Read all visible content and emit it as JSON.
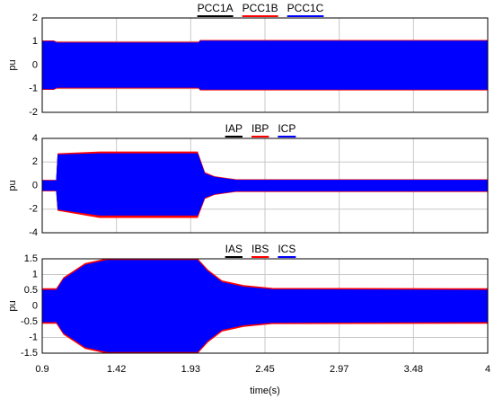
{
  "chart_data": [
    {
      "type": "band",
      "ylabel": "pu",
      "xlim": [
        0.9,
        4
      ],
      "ylim": [
        -2,
        2
      ],
      "yticks": [
        -2,
        -1,
        0,
        1,
        2
      ],
      "grid": true,
      "x": [
        0.9,
        0.98,
        1.0,
        1.99,
        2.0,
        4.0
      ],
      "series": [
        {
          "name": "PCC1A",
          "color": "#000000",
          "values": [
            1.0,
            1.0,
            0.95,
            0.95,
            1.02,
            1.02
          ],
          "lower": [
            -1.0,
            -1.0,
            -0.95,
            -0.95,
            -1.02,
            -1.02
          ]
        },
        {
          "name": "PCC1B",
          "color": "#ff0000",
          "values": [
            1.03,
            1.03,
            0.97,
            0.97,
            1.05,
            1.05
          ],
          "lower": [
            -1.03,
            -1.03,
            -0.97,
            -0.97,
            -1.05,
            -1.05
          ]
        },
        {
          "name": "PCC1C",
          "color": "#0000ff",
          "values": [
            1.0,
            1.0,
            0.94,
            0.94,
            1.02,
            1.02
          ],
          "lower": [
            -1.0,
            -1.0,
            -0.94,
            -0.94,
            -1.02,
            -1.02
          ]
        }
      ]
    },
    {
      "type": "band",
      "ylabel": "pu",
      "xlim": [
        0.9,
        4
      ],
      "ylim": [
        -4,
        4
      ],
      "yticks": [
        -4,
        -2,
        0,
        2,
        4
      ],
      "grid": true,
      "x": [
        0.9,
        1.0,
        1.01,
        1.3,
        1.98,
        2.03,
        2.1,
        2.25,
        4.0
      ],
      "series": [
        {
          "name": "IAP",
          "color": "#000000",
          "values": [
            0.4,
            0.4,
            2.6,
            2.7,
            2.7,
            1.0,
            0.7,
            0.45,
            0.45
          ],
          "lower": [
            -0.4,
            -0.4,
            -2.0,
            -2.5,
            -2.5,
            -1.0,
            -0.7,
            -0.45,
            -0.45
          ]
        },
        {
          "name": "IBP",
          "color": "#ff0000",
          "values": [
            0.45,
            0.45,
            2.7,
            2.85,
            2.85,
            1.1,
            0.75,
            0.5,
            0.5
          ],
          "lower": [
            -0.45,
            -0.45,
            -2.1,
            -2.7,
            -2.7,
            -1.1,
            -0.75,
            -0.5,
            -0.5
          ]
        },
        {
          "name": "ICP",
          "color": "#0000ff",
          "values": [
            0.4,
            0.4,
            2.6,
            2.7,
            2.7,
            1.0,
            0.7,
            0.45,
            0.45
          ],
          "lower": [
            -0.4,
            -0.4,
            -2.0,
            -2.5,
            -2.5,
            -1.0,
            -0.7,
            -0.45,
            -0.45
          ]
        }
      ]
    },
    {
      "type": "band",
      "ylabel": "pu",
      "xlabel": "time(s)",
      "xlim": [
        0.9,
        4
      ],
      "ylim": [
        -1.5,
        1.5
      ],
      "yticks": [
        -1.5,
        -1,
        -0.5,
        0,
        0.5,
        1,
        1.5
      ],
      "grid": true,
      "xticks": [
        0.9,
        {
          "value": 1.4167,
          "label": "1.42"
        },
        {
          "value": 1.9333,
          "label": "1.93"
        },
        2.45,
        {
          "value": 2.9667,
          "label": "2.97"
        },
        {
          "value": 3.4833,
          "label": "3.48"
        },
        4
      ],
      "x": [
        0.9,
        1.0,
        1.05,
        1.2,
        1.35,
        1.98,
        2.05,
        2.15,
        2.3,
        2.5,
        4.0
      ],
      "series": [
        {
          "name": "IAS",
          "color": "#000000",
          "values": [
            0.5,
            0.5,
            0.85,
            1.3,
            1.45,
            1.45,
            1.1,
            0.75,
            0.6,
            0.52,
            0.5
          ],
          "lower": [
            -0.5,
            -0.5,
            -0.85,
            -1.3,
            -1.45,
            -1.45,
            -1.1,
            -0.75,
            -0.6,
            -0.52,
            -0.5
          ]
        },
        {
          "name": "IBS",
          "color": "#ff0000",
          "values": [
            0.55,
            0.55,
            0.9,
            1.35,
            1.5,
            1.5,
            1.15,
            0.8,
            0.65,
            0.56,
            0.55
          ],
          "lower": [
            -0.55,
            -0.55,
            -0.9,
            -1.35,
            -1.5,
            -1.5,
            -1.15,
            -0.8,
            -0.65,
            -0.56,
            -0.55
          ]
        },
        {
          "name": "ICS",
          "color": "#0000ff",
          "values": [
            0.5,
            0.5,
            0.85,
            1.3,
            1.45,
            1.45,
            1.1,
            0.75,
            0.6,
            0.52,
            0.5
          ],
          "lower": [
            -0.5,
            -0.5,
            -0.85,
            -1.3,
            -1.45,
            -1.45,
            -1.1,
            -0.75,
            -0.6,
            -0.52,
            -0.5
          ]
        }
      ]
    }
  ]
}
